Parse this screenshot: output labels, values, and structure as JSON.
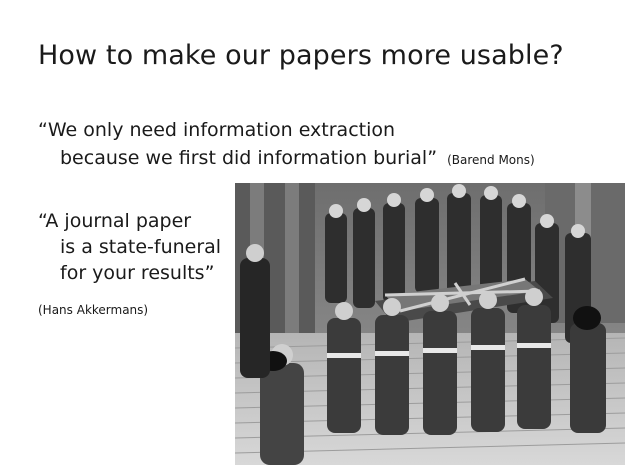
{
  "slide": {
    "title": "How to make our papers more usable?",
    "quote1": {
      "line1": "“We only need information extraction",
      "line2": "because we first did information burial”",
      "attribution": "(Barend Mons)"
    },
    "quote2": {
      "line1": "“A journal paper",
      "line2": "is a state-funeral",
      "line3": "for your results”",
      "attribution": "(Hans Akkermans)"
    }
  },
  "photo": {
    "icon": "funeral-procession-photo"
  }
}
